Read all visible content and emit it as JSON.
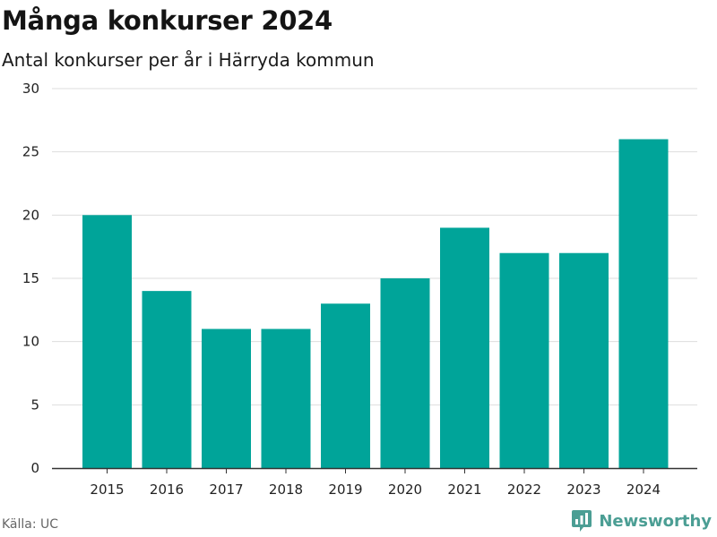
{
  "title": "Många konkurser 2024",
  "subtitle": "Antal konkurser per år i Härryda kommun",
  "source": "Källa: UC",
  "brand": {
    "name": "Newsworthy",
    "icon": "newsworthy-logo-icon",
    "color": "#4b9e94"
  },
  "colors": {
    "bar": "#00a499",
    "grid": "#dddddd",
    "axis": "#333333"
  },
  "chart_data": {
    "type": "bar",
    "categories": [
      "2015",
      "2016",
      "2017",
      "2018",
      "2019",
      "2020",
      "2021",
      "2022",
      "2023",
      "2024"
    ],
    "values": [
      20,
      14,
      11,
      11,
      13,
      15,
      19,
      17,
      17,
      26
    ],
    "ylim": [
      0,
      30
    ],
    "yticks": [
      0,
      5,
      10,
      15,
      20,
      25,
      30
    ],
    "grid": true,
    "legend": "none",
    "xlabel": "",
    "ylabel": ""
  }
}
